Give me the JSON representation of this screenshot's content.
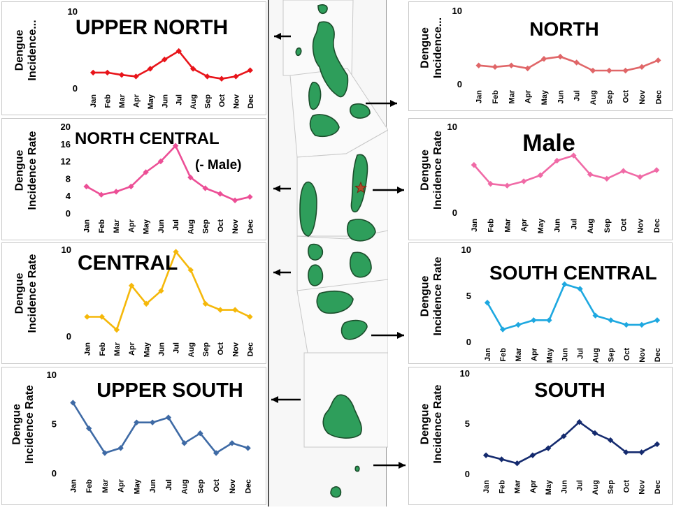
{
  "months": [
    "Jan",
    "Feb",
    "Mar",
    "Apr",
    "May",
    "Jun",
    "Jul",
    "Aug",
    "Sep",
    "Oct",
    "Nov",
    "Dec"
  ],
  "map_star_color": "#b04a2a",
  "map_island_color": "#2e9e5b",
  "chart_data": [
    {
      "type": "line",
      "title": "UPPER NORTH",
      "ylabel": "Dengue Incidence...",
      "ylim": [
        0,
        10
      ],
      "yticks": [
        0,
        10
      ],
      "categories": [
        "Jan",
        "Feb",
        "Mar",
        "Apr",
        "May",
        "Jun",
        "Jul",
        "Aug",
        "Sep",
        "Oct",
        "Nov",
        "Dec"
      ],
      "series": [
        {
          "color": "#e8141a",
          "values": [
            2.1,
            2.1,
            1.8,
            1.6,
            2.6,
            3.8,
            4.9,
            2.6,
            1.6,
            1.3,
            1.6,
            2.4
          ]
        }
      ]
    },
    {
      "type": "line",
      "title": "NORTH",
      "ylabel": "Dengue Incidence...",
      "ylim": [
        0,
        10
      ],
      "yticks": [
        0,
        10
      ],
      "categories": [
        "Jan",
        "Feb",
        "Mar",
        "Apr",
        "May",
        "Jun",
        "Jul",
        "Aug",
        "Sep",
        "Oct",
        "Nov",
        "Dec"
      ],
      "series": [
        {
          "color": "#e06668",
          "values": [
            2.6,
            2.4,
            2.6,
            2.2,
            3.5,
            3.8,
            3.0,
            1.9,
            1.9,
            1.9,
            2.4,
            3.3
          ]
        }
      ]
    },
    {
      "type": "line",
      "title": "NORTH CENTRAL",
      "note": "(- Male)",
      "ylabel": "Dengue Incidence Rate",
      "ylim": [
        0,
        20
      ],
      "yticks": [
        0,
        4,
        8,
        12,
        16,
        20
      ],
      "categories": [
        "Jan",
        "Feb",
        "Mar",
        "Apr",
        "May",
        "Jun",
        "Jul",
        "Aug",
        "Sep",
        "Oct",
        "Nov",
        "Dec"
      ],
      "series": [
        {
          "color": "#ec4f96",
          "values": [
            6.3,
            4.4,
            5.1,
            6.3,
            9.6,
            12.1,
            15.7,
            8.4,
            5.9,
            4.6,
            3.1,
            3.9
          ]
        }
      ]
    },
    {
      "type": "line",
      "title": "Male",
      "ylabel": "Dengue Incidence Rate",
      "ylim": [
        0,
        10
      ],
      "yticks": [
        0,
        10
      ],
      "categories": [
        "Jan",
        "Feb",
        "Mar",
        "Apr",
        "May",
        "Jun",
        "Jul",
        "Aug",
        "Sep",
        "Oct",
        "Nov",
        "Dec"
      ],
      "series": [
        {
          "color": "#f06aa6",
          "values": [
            5.6,
            3.4,
            3.2,
            3.7,
            4.4,
            6.1,
            6.7,
            4.5,
            4.0,
            4.9,
            4.2,
            5.0
          ]
        }
      ]
    },
    {
      "type": "line",
      "title": "CENTRAL",
      "ylabel": "Dengue Incidence Rate",
      "ylim": [
        0,
        10
      ],
      "yticks": [
        0,
        10
      ],
      "categories": [
        "Jan",
        "Feb",
        "Mar",
        "Apr",
        "May",
        "Jun",
        "Jul",
        "Aug",
        "Sep",
        "Oct",
        "Nov",
        "Dec"
      ],
      "series": [
        {
          "color": "#f5b80a",
          "values": [
            2.3,
            2.3,
            0.8,
            5.9,
            3.8,
            5.3,
            9.8,
            7.7,
            3.8,
            3.1,
            3.1,
            2.3
          ]
        }
      ]
    },
    {
      "type": "line",
      "title": "SOUTH CENTRAL",
      "ylabel": "Dengue Incidence Rate",
      "ylim": [
        0,
        10
      ],
      "yticks": [
        0,
        5,
        10
      ],
      "categories": [
        "Jan",
        "Feb",
        "Mar",
        "Apr",
        "May",
        "Jun",
        "Jul",
        "Aug",
        "Sep",
        "Oct",
        "Nov",
        "Dec"
      ],
      "series": [
        {
          "color": "#1ea8e0",
          "values": [
            4.3,
            1.4,
            1.9,
            2.4,
            2.4,
            6.3,
            5.8,
            2.9,
            2.4,
            1.9,
            1.9,
            2.4
          ]
        }
      ]
    },
    {
      "type": "line",
      "title": "UPPER SOUTH",
      "ylabel": "Dengue Incidence Rate",
      "ylim": [
        0,
        10
      ],
      "yticks": [
        0,
        5,
        10
      ],
      "categories": [
        "Jan",
        "Feb",
        "Mar",
        "Apr",
        "May",
        "Jun",
        "Jul",
        "Aug",
        "Sep",
        "Oct",
        "Nov",
        "Dec"
      ],
      "series": [
        {
          "color": "#3e6aa5",
          "values": [
            7.2,
            4.6,
            2.1,
            2.6,
            5.2,
            5.2,
            5.7,
            3.1,
            4.1,
            2.1,
            3.1,
            2.6
          ]
        }
      ]
    },
    {
      "type": "line",
      "title": "SOUTH",
      "ylabel": "Dengue Incidence Rate",
      "ylim": [
        0,
        10
      ],
      "yticks": [
        0,
        5,
        10
      ],
      "categories": [
        "Jan",
        "Feb",
        "Mar",
        "Apr",
        "May",
        "Jun",
        "Jul",
        "Aug",
        "Sep",
        "Oct",
        "Nov",
        "Dec"
      ],
      "series": [
        {
          "color": "#142a6e",
          "values": [
            1.9,
            1.5,
            1.1,
            1.9,
            2.6,
            3.8,
            5.2,
            4.1,
            3.4,
            2.2,
            2.2,
            3.0
          ]
        }
      ]
    }
  ]
}
